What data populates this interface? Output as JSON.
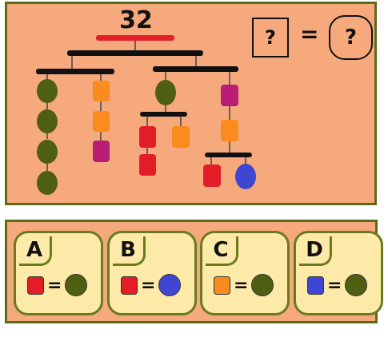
{
  "puzzle": {
    "total": "32",
    "question_shape": "?",
    "question_equals": "=",
    "question_value": "?"
  },
  "colors": {
    "olive": "#4e5f12",
    "orange": "#f98b1f",
    "magenta": "#b91e74",
    "red": "#e21d28",
    "blue": "#3f46d4",
    "bar": "#111111",
    "top_bar": "#e2212a"
  },
  "options": [
    {
      "letter": "A",
      "shape_color": "red",
      "equals": "=",
      "circle_color": "olive"
    },
    {
      "letter": "B",
      "shape_color": "red",
      "equals": "=",
      "circle_color": "blue"
    },
    {
      "letter": "C",
      "shape_color": "orange",
      "equals": "=",
      "circle_color": "olive"
    },
    {
      "letter": "D",
      "shape_color": "blue",
      "equals": "=",
      "circle_color": "olive"
    }
  ]
}
